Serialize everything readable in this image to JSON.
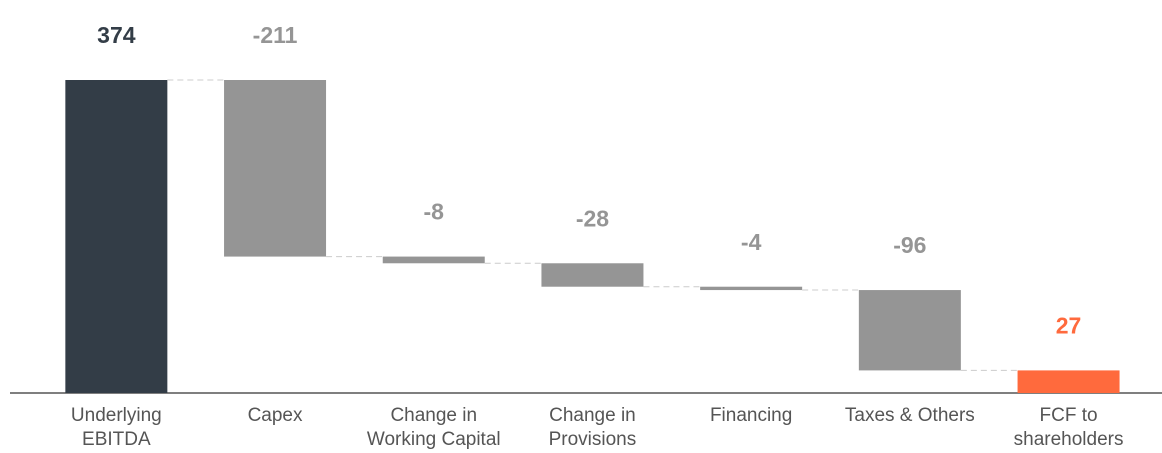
{
  "chart_data": {
    "type": "waterfall",
    "categories": [
      "Underlying EBITDA",
      "Capex",
      "Change in Working Capital",
      "Change in Provisions",
      "Financing",
      "Taxes & Others",
      "FCF to shareholders"
    ],
    "values": [
      374,
      -211,
      -8,
      -28,
      -4,
      -96,
      27
    ],
    "colors": [
      "#333d47",
      "#959595",
      "#959595",
      "#959595",
      "#959595",
      "#959595",
      "#ff6a3d"
    ]
  }
}
